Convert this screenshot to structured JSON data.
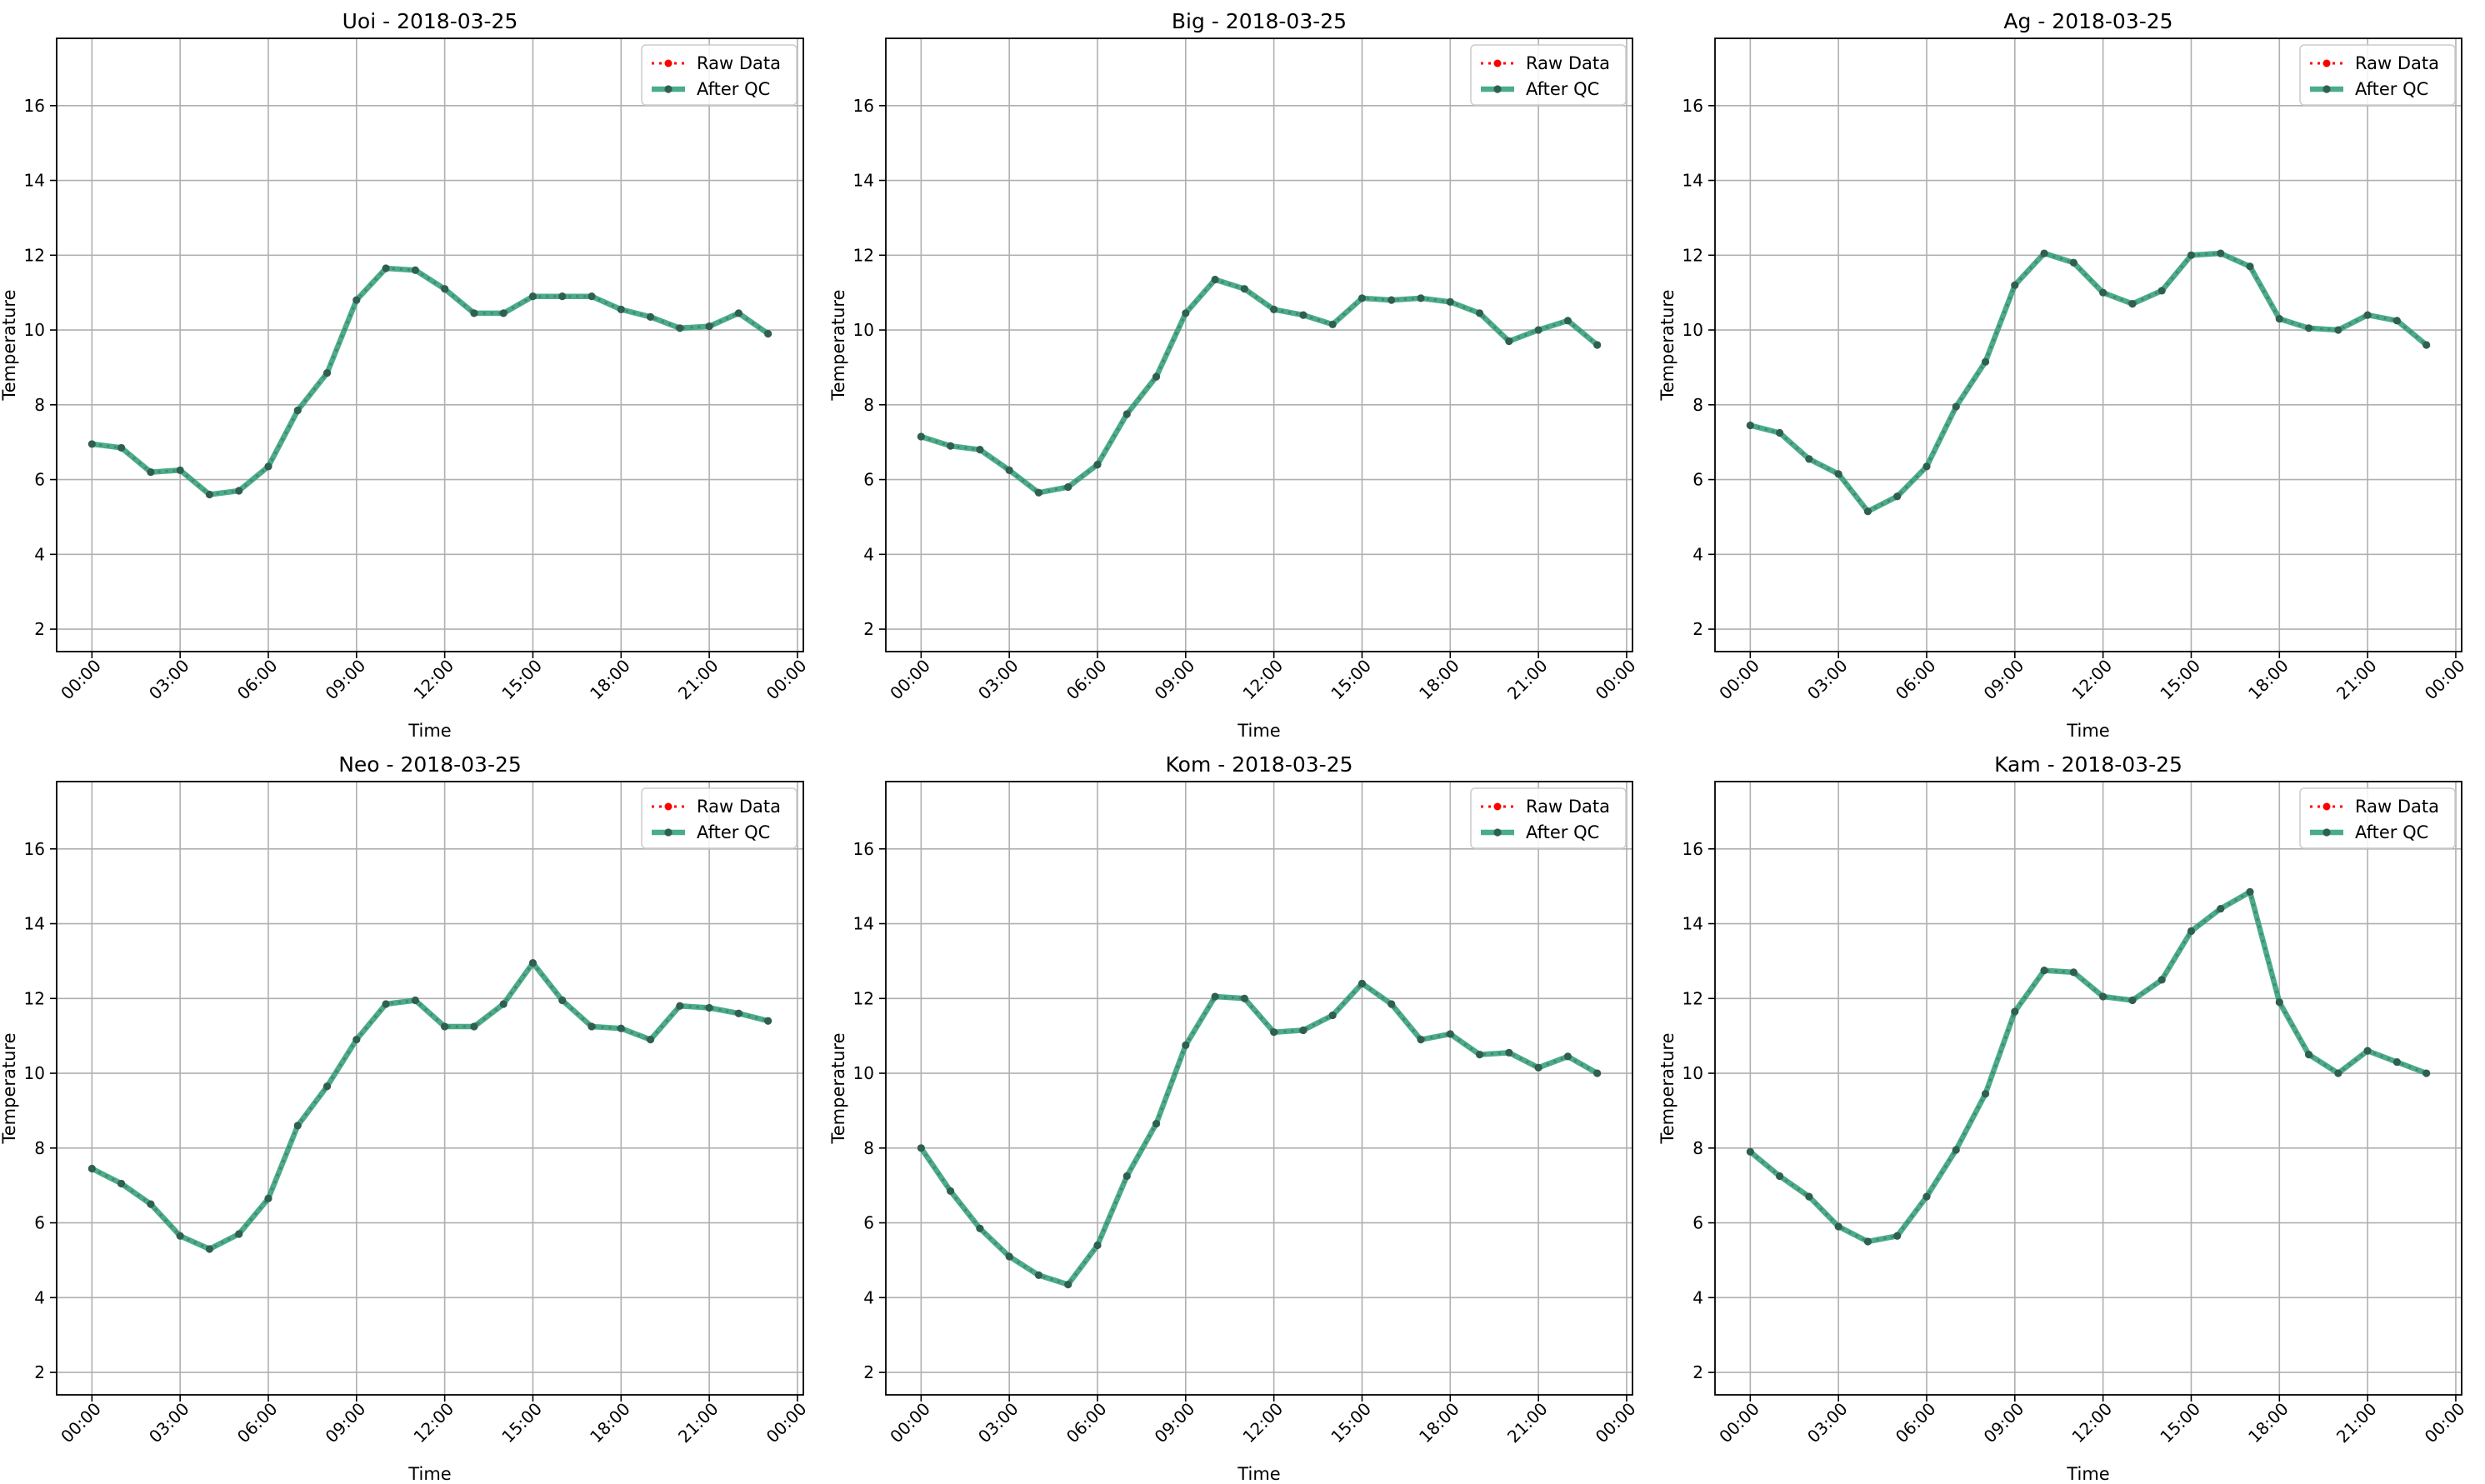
{
  "figure": {
    "xlabel": "Time",
    "ylabel": "Temperature",
    "ylim": [
      1.4,
      17.8
    ],
    "yticks": [
      2,
      4,
      6,
      8,
      10,
      12,
      14,
      16
    ],
    "xticks": [
      0,
      3,
      6,
      9,
      12,
      15,
      18,
      21,
      24
    ],
    "xtick_labels": [
      "00:00",
      "03:00",
      "06:00",
      "09:00",
      "12:00",
      "15:00",
      "18:00",
      "21:00",
      "00:00"
    ],
    "grid": true,
    "legend_placement": "top-right",
    "legend": [
      {
        "label": "Raw Data",
        "style": "dotted",
        "color": "#ff0000"
      },
      {
        "label": "After QC",
        "style": "solid",
        "color": "#2a9d75"
      }
    ],
    "colors": {
      "raw": "#ff0000",
      "qc": "#2a9d75",
      "marker": "#2f5f52",
      "grid": "#b0b0b0"
    }
  },
  "chart_data": [
    {
      "type": "line",
      "title": "Uoi - 2018-03-25",
      "xlabel": "Time",
      "ylabel": "Temperature",
      "ylim": [
        1.4,
        17.8
      ],
      "x_hours": [
        0,
        1,
        2,
        3,
        4,
        5,
        6,
        7,
        8,
        9,
        10,
        11,
        12,
        13,
        14,
        15,
        16,
        17,
        18,
        19,
        20,
        21,
        22,
        23
      ],
      "series": [
        {
          "name": "Raw Data",
          "values": [
            6.95,
            6.85,
            6.2,
            6.25,
            5.6,
            5.7,
            6.35,
            7.85,
            8.85,
            10.8,
            11.65,
            11.6,
            11.1,
            10.45,
            10.45,
            10.9,
            10.9,
            10.9,
            10.55,
            10.35,
            10.05,
            10.1,
            10.45,
            9.9
          ]
        },
        {
          "name": "After QC",
          "values": [
            6.95,
            6.85,
            6.2,
            6.25,
            5.6,
            5.7,
            6.35,
            7.85,
            8.85,
            10.8,
            11.65,
            11.6,
            11.1,
            10.45,
            10.45,
            10.9,
            10.9,
            10.9,
            10.55,
            10.35,
            10.05,
            10.1,
            10.45,
            9.9
          ]
        }
      ]
    },
    {
      "type": "line",
      "title": "Big - 2018-03-25",
      "xlabel": "Time",
      "ylabel": "Temperature",
      "ylim": [
        1.4,
        17.8
      ],
      "x_hours": [
        0,
        1,
        2,
        3,
        4,
        5,
        6,
        7,
        8,
        9,
        10,
        11,
        12,
        13,
        14,
        15,
        16,
        17,
        18,
        19,
        20,
        21,
        22,
        23
      ],
      "series": [
        {
          "name": "Raw Data",
          "values": [
            7.15,
            6.9,
            6.8,
            6.25,
            5.65,
            5.8,
            6.4,
            7.75,
            8.75,
            10.45,
            11.35,
            11.1,
            10.55,
            10.4,
            10.15,
            10.85,
            10.8,
            10.85,
            10.75,
            10.45,
            9.7,
            10.0,
            10.25,
            9.6
          ]
        },
        {
          "name": "After QC",
          "values": [
            7.15,
            6.9,
            6.8,
            6.25,
            5.65,
            5.8,
            6.4,
            7.75,
            8.75,
            10.45,
            11.35,
            11.1,
            10.55,
            10.4,
            10.15,
            10.85,
            10.8,
            10.85,
            10.75,
            10.45,
            9.7,
            10.0,
            10.25,
            9.6
          ]
        }
      ]
    },
    {
      "type": "line",
      "title": "Ag - 2018-03-25",
      "xlabel": "Time",
      "ylabel": "Temperature",
      "ylim": [
        1.4,
        17.8
      ],
      "x_hours": [
        0,
        1,
        2,
        3,
        4,
        5,
        6,
        7,
        8,
        9,
        10,
        11,
        12,
        13,
        14,
        15,
        16,
        17,
        18,
        19,
        20,
        21,
        22,
        23
      ],
      "series": [
        {
          "name": "Raw Data",
          "values": [
            7.45,
            7.25,
            6.55,
            6.15,
            5.15,
            5.55,
            6.35,
            7.95,
            9.15,
            11.2,
            12.05,
            11.8,
            11.0,
            10.7,
            11.05,
            12.0,
            12.05,
            11.7,
            10.3,
            10.05,
            10.0,
            10.4,
            10.25,
            9.6
          ]
        },
        {
          "name": "After QC",
          "values": [
            7.45,
            7.25,
            6.55,
            6.15,
            5.15,
            5.55,
            6.35,
            7.95,
            9.15,
            11.2,
            12.05,
            11.8,
            11.0,
            10.7,
            11.05,
            12.0,
            12.05,
            11.7,
            10.3,
            10.05,
            10.0,
            10.4,
            10.25,
            9.6
          ]
        }
      ]
    },
    {
      "type": "line",
      "title": "Neo - 2018-03-25",
      "xlabel": "Time",
      "ylabel": "Temperature",
      "ylim": [
        1.4,
        17.8
      ],
      "x_hours": [
        0,
        1,
        2,
        3,
        4,
        5,
        6,
        7,
        8,
        9,
        10,
        11,
        12,
        13,
        14,
        15,
        16,
        17,
        18,
        19,
        20,
        21,
        22,
        23
      ],
      "series": [
        {
          "name": "Raw Data",
          "values": [
            7.45,
            7.05,
            6.5,
            5.65,
            5.3,
            5.7,
            6.65,
            8.6,
            9.65,
            10.9,
            11.85,
            11.95,
            11.25,
            11.25,
            11.85,
            12.95,
            11.95,
            11.25,
            11.2,
            10.9,
            11.8,
            11.75,
            11.6,
            11.4
          ]
        },
        {
          "name": "After QC",
          "values": [
            7.45,
            7.05,
            6.5,
            5.65,
            5.3,
            5.7,
            6.65,
            8.6,
            9.65,
            10.9,
            11.85,
            11.95,
            11.25,
            11.25,
            11.85,
            12.95,
            11.95,
            11.25,
            11.2,
            10.9,
            11.8,
            11.75,
            11.6,
            11.4
          ]
        }
      ]
    },
    {
      "type": "line",
      "title": "Kom - 2018-03-25",
      "xlabel": "Time",
      "ylabel": "Temperature",
      "ylim": [
        1.4,
        17.8
      ],
      "x_hours": [
        0,
        1,
        2,
        3,
        4,
        5,
        6,
        7,
        8,
        9,
        10,
        11,
        12,
        13,
        14,
        15,
        16,
        17,
        18,
        19,
        20,
        21,
        22,
        23
      ],
      "series": [
        {
          "name": "Raw Data",
          "values": [
            8.0,
            6.85,
            5.85,
            5.1,
            4.6,
            4.35,
            5.4,
            7.25,
            8.65,
            10.75,
            12.05,
            12.0,
            11.1,
            11.15,
            11.55,
            12.4,
            11.85,
            10.9,
            11.05,
            10.5,
            10.55,
            10.15,
            10.45,
            10.0
          ]
        },
        {
          "name": "After QC",
          "values": [
            8.0,
            6.85,
            5.85,
            5.1,
            4.6,
            4.35,
            5.4,
            7.25,
            8.65,
            10.75,
            12.05,
            12.0,
            11.1,
            11.15,
            11.55,
            12.4,
            11.85,
            10.9,
            11.05,
            10.5,
            10.55,
            10.15,
            10.45,
            10.0
          ]
        }
      ]
    },
    {
      "type": "line",
      "title": "Kam - 2018-03-25",
      "xlabel": "Time",
      "ylabel": "Temperature",
      "ylim": [
        1.4,
        17.8
      ],
      "x_hours": [
        0,
        1,
        2,
        3,
        4,
        5,
        6,
        7,
        8,
        9,
        10,
        11,
        12,
        13,
        14,
        15,
        16,
        17,
        18,
        19,
        20,
        21,
        22,
        23
      ],
      "series": [
        {
          "name": "Raw Data",
          "values": [
            7.9,
            7.25,
            6.7,
            5.9,
            5.5,
            5.65,
            6.7,
            7.95,
            9.45,
            11.65,
            12.75,
            12.7,
            12.05,
            11.95,
            12.5,
            13.8,
            14.4,
            14.85,
            11.9,
            10.5,
            10.0,
            10.6,
            10.3,
            10.0
          ]
        },
        {
          "name": "After QC",
          "values": [
            7.9,
            7.25,
            6.7,
            5.9,
            5.5,
            5.65,
            6.7,
            7.95,
            9.45,
            11.65,
            12.75,
            12.7,
            12.05,
            11.95,
            12.5,
            13.8,
            14.4,
            14.85,
            11.9,
            10.5,
            10.0,
            10.6,
            10.3,
            10.0
          ]
        }
      ]
    }
  ]
}
